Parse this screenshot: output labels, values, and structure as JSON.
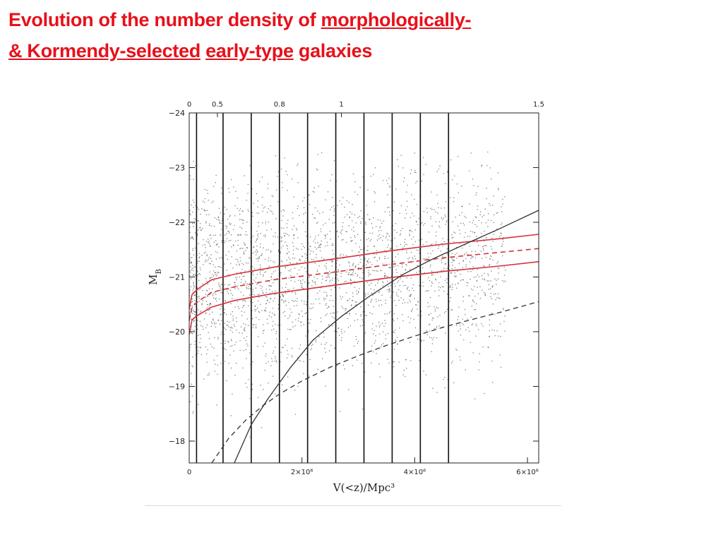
{
  "title": {
    "line1_plain": "Evolution of the number density of  ",
    "line1_underlined": "morphologically-",
    "line2_underlined_a": "& Kormendy-selected",
    "line2_gap": "  ",
    "line2_underlined_b": "early-type",
    "line2_plain": " galaxies"
  },
  "colors": {
    "title": "#e8101a",
    "model_curves": "#d6313b",
    "points": "#555555",
    "limits": "#333333"
  },
  "chart_data": {
    "type": "scatter",
    "xlabel": "V(<z)/Mpc³",
    "ylabel_main": "M",
    "ylabel_sub": "B",
    "xlim": [
      0,
      6200000
    ],
    "ylim": [
      -17.6,
      -24
    ],
    "x_ticks": [
      {
        "value": 0,
        "label": "0"
      },
      {
        "value": 2000000,
        "label": "2×10⁶"
      },
      {
        "value": 4000000,
        "label": "4×10⁶"
      },
      {
        "value": 6000000,
        "label": "6×10⁶"
      }
    ],
    "y_ticks": [
      {
        "value": -24,
        "label": "−24"
      },
      {
        "value": -23,
        "label": "−23"
      },
      {
        "value": -22,
        "label": "−22"
      },
      {
        "value": -21,
        "label": "−21"
      },
      {
        "value": -20,
        "label": "−20"
      },
      {
        "value": -19,
        "label": "−19"
      },
      {
        "value": -18,
        "label": "−18"
      }
    ],
    "top_ticks": [
      {
        "value": 0,
        "label": "0"
      },
      {
        "value": 500000,
        "label": "0.5"
      },
      {
        "value": 1600000,
        "label": "0.8"
      },
      {
        "value": 2700000,
        "label": "1"
      },
      {
        "value": 6200000,
        "label": "1.5"
      }
    ],
    "bin_edges": [
      130000,
      600000,
      1100000,
      1600000,
      2100000,
      2600000,
      3100000,
      3600000,
      4100000,
      4600000
    ],
    "series": [
      {
        "style": "red-solid",
        "x": [
          0,
          50000,
          150000,
          400000,
          800000,
          1500000,
          2500000,
          3500000,
          4500000,
          5500000,
          6200000
        ],
        "y": [
          -20.42,
          -20.68,
          -20.78,
          -20.95,
          -21.05,
          -21.18,
          -21.32,
          -21.47,
          -21.6,
          -21.7,
          -21.78
        ]
      },
      {
        "style": "red-dashed",
        "x": [
          0,
          50000,
          150000,
          400000,
          800000,
          1500000,
          2500000,
          3500000,
          4500000,
          5500000,
          6200000
        ],
        "y": [
          -20.2,
          -20.45,
          -20.55,
          -20.72,
          -20.82,
          -20.95,
          -21.08,
          -21.22,
          -21.35,
          -21.45,
          -21.52
        ]
      },
      {
        "style": "red-solid",
        "x": [
          0,
          50000,
          150000,
          400000,
          800000,
          1500000,
          2500000,
          3500000,
          4500000,
          5500000,
          6200000
        ],
        "y": [
          -19.95,
          -20.22,
          -20.3,
          -20.45,
          -20.57,
          -20.7,
          -20.84,
          -20.98,
          -21.1,
          -21.2,
          -21.28
        ]
      },
      {
        "style": "black-solid",
        "x": [
          800000,
          1100000,
          1400000,
          1800000,
          2200000,
          2700000,
          3200000,
          3800000,
          4300000,
          5000000,
          5500000,
          6200000
        ],
        "y": [
          -17.6,
          -18.3,
          -18.78,
          -19.35,
          -19.85,
          -20.28,
          -20.65,
          -21.05,
          -21.32,
          -21.65,
          -21.88,
          -22.22
        ]
      },
      {
        "style": "black-dashed",
        "x": [
          400000,
          700000,
          1000000,
          1300000,
          1600000,
          2000000,
          2500000,
          3000000,
          3500000,
          4000000,
          4500000,
          5000000,
          5500000,
          6200000
        ],
        "y": [
          -17.6,
          -18.05,
          -18.38,
          -18.64,
          -18.86,
          -19.1,
          -19.35,
          -19.56,
          -19.75,
          -19.92,
          -20.08,
          -20.22,
          -20.35,
          -20.55
        ]
      }
    ],
    "scatter_density": {
      "mb_range": [
        -23.3,
        -17.8
      ],
      "mean_mb": -20.9,
      "spread_mag": 0.9
    }
  }
}
